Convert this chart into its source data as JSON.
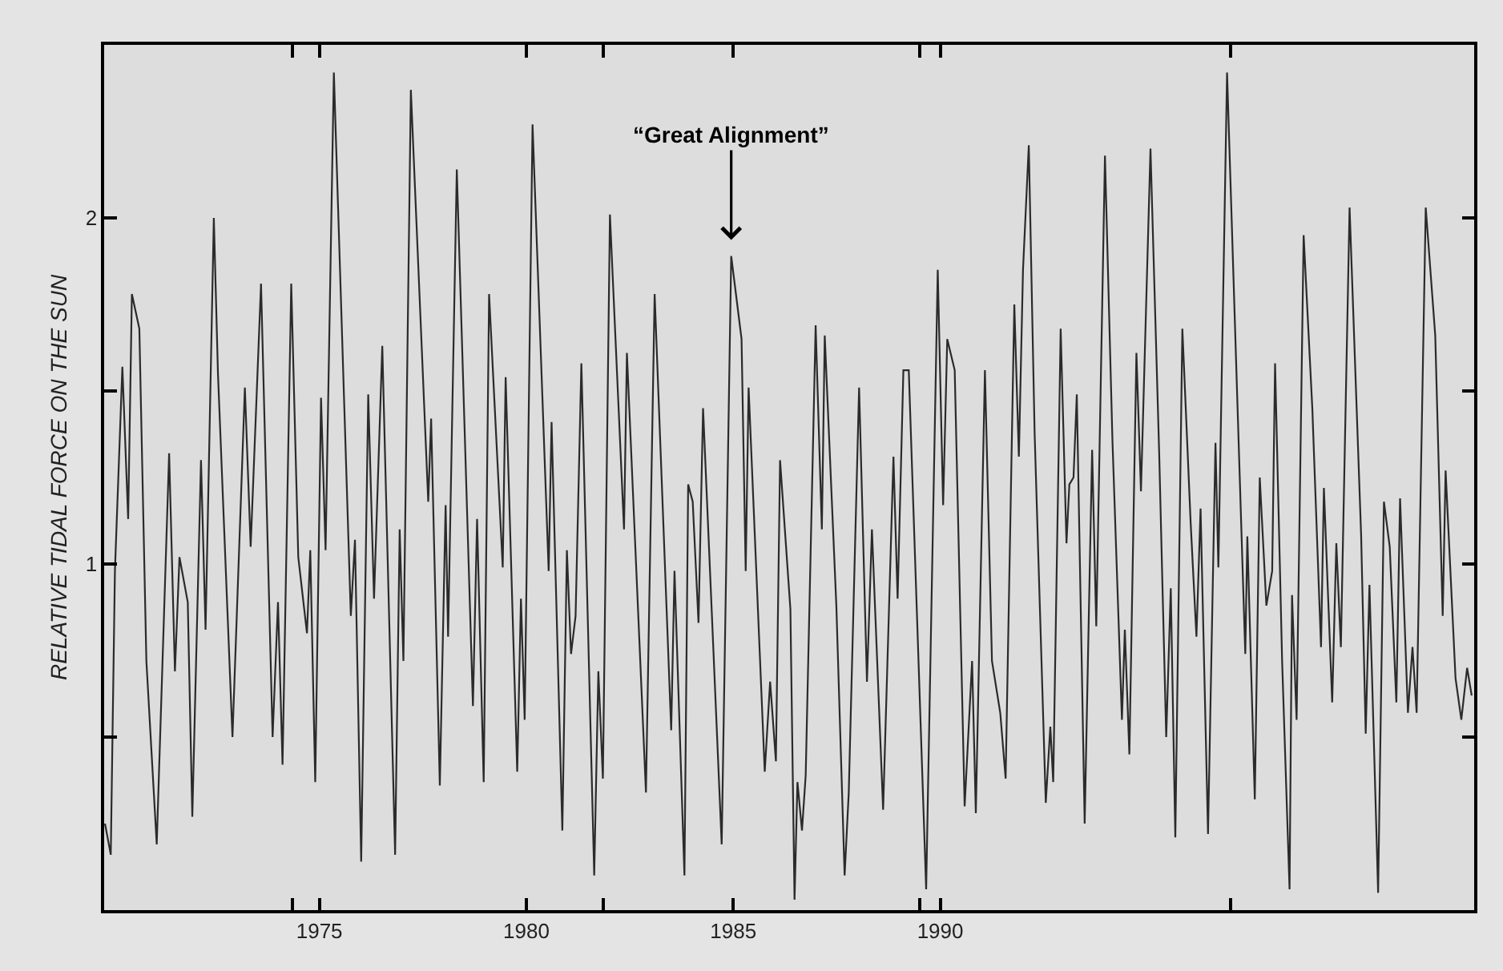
{
  "chart_data": {
    "type": "line",
    "ylabel": "RELATIVE TIDAL FORCE ON THE SUN",
    "annotations": [
      {
        "text": "“Great Alignment”",
        "x": 1984.95,
        "y": 1.89
      }
    ],
    "xlim": [
      1969.8,
      2002.9
    ],
    "xticks": [
      {
        "value": 1974.34,
        "label": null
      },
      1975,
      1980,
      {
        "value": 1981.86,
        "label": null
      },
      1985,
      {
        "value": 1989.5,
        "label": null
      },
      1990,
      {
        "value": 1997.02,
        "label": null
      }
    ],
    "ylim": [
      0,
      2.5
    ],
    "yticks": [
      {
        "value": 0.5,
        "label": null
      },
      1,
      {
        "value": 1.5,
        "label": null
      },
      2
    ],
    "marker": "none",
    "line_style": "solid",
    "series": [
      {
        "color": "#2b2b2b",
        "x": [
          1969.82,
          1969.96,
          1970.06,
          1970.24,
          1970.38,
          1970.47,
          1970.65,
          1970.82,
          1971.07,
          1971.37,
          1971.51,
          1971.62,
          1971.82,
          1971.93,
          1972.14,
          1972.25,
          1972.45,
          1972.55,
          1972.9,
          1973.2,
          1973.34,
          1973.59,
          1973.87,
          1974.0,
          1974.11,
          1974.32,
          1974.49,
          1974.7,
          1974.78,
          1974.9,
          1975.04,
          1975.15,
          1975.35,
          1975.76,
          1975.86,
          1976.01,
          1976.18,
          1976.32,
          1976.52,
          1976.83,
          1976.94,
          1977.03,
          1977.21,
          1977.63,
          1977.7,
          1977.91,
          1978.05,
          1978.11,
          1978.32,
          1978.71,
          1978.81,
          1978.97,
          1979.1,
          1979.43,
          1979.5,
          1979.78,
          1979.87,
          1979.96,
          1980.15,
          1980.54,
          1980.61,
          1980.87,
          1980.98,
          1981.08,
          1981.19,
          1981.33,
          1981.64,
          1981.74,
          1981.85,
          1982.02,
          1982.36,
          1982.43,
          1982.89,
          1983.1,
          1983.5,
          1983.58,
          1983.82,
          1983.91,
          1984.02,
          1984.16,
          1984.27,
          1984.72,
          1984.95,
          1985.2,
          1985.3,
          1985.37,
          1985.76,
          1985.89,
          1986.03,
          1986.13,
          1986.38,
          1986.48,
          1986.55,
          1986.66,
          1986.75,
          1986.99,
          1987.14,
          1987.21,
          1987.49,
          1987.69,
          1987.79,
          1988.04,
          1988.23,
          1988.35,
          1988.62,
          1988.87,
          1988.97,
          1989.11,
          1989.24,
          1989.66,
          1989.94,
          1990.07,
          1990.17,
          1990.35,
          1990.59,
          1990.77,
          1990.86,
          1991.08,
          1991.25,
          1991.45,
          1991.58,
          1991.79,
          1991.9,
          1992.0,
          1992.14,
          1992.28,
          1992.55,
          1992.66,
          1992.73,
          1992.91,
          1993.05,
          1993.12,
          1993.22,
          1993.3,
          1993.49,
          1993.67,
          1993.77,
          1993.98,
          1994.16,
          1994.39,
          1994.46,
          1994.57,
          1994.74,
          1994.85,
          1995.08,
          1995.29,
          1995.46,
          1995.57,
          1995.68,
          1995.85,
          1996.05,
          1996.19,
          1996.29,
          1996.47,
          1996.65,
          1996.72,
          1996.93,
          1997.37,
          1997.42,
          1997.6,
          1997.72,
          1997.88,
          1998.02,
          1998.09,
          1998.26,
          1998.44,
          1998.5,
          1998.61,
          1998.78,
          1998.99,
          1999.2,
          1999.27,
          1999.47,
          1999.57,
          1999.68,
          1999.89,
          2000.17,
          2000.28,
          2000.37,
          2000.58,
          2000.72,
          2000.86,
          2001.02,
          2001.11,
          2001.3,
          2001.41,
          2001.51,
          2001.73,
          2001.96,
          2002.14,
          2002.21,
          2002.45,
          2002.59,
          2002.73,
          2002.84
        ],
        "values": [
          0.25,
          0.16,
          0.98,
          1.57,
          1.13,
          1.78,
          1.68,
          0.72,
          0.19,
          1.32,
          0.69,
          1.02,
          0.89,
          0.27,
          1.3,
          0.81,
          2.0,
          1.55,
          0.5,
          1.51,
          1.05,
          1.81,
          0.5,
          0.89,
          0.42,
          1.81,
          1.02,
          0.8,
          1.04,
          0.37,
          1.48,
          1.04,
          2.42,
          0.85,
          1.07,
          0.14,
          1.49,
          0.9,
          1.63,
          0.16,
          1.1,
          0.72,
          2.37,
          1.18,
          1.42,
          0.36,
          1.17,
          0.79,
          2.14,
          0.59,
          1.13,
          0.37,
          1.78,
          0.99,
          1.54,
          0.4,
          0.9,
          0.55,
          2.27,
          0.98,
          1.41,
          0.23,
          1.04,
          0.74,
          0.85,
          1.58,
          0.1,
          0.69,
          0.38,
          2.01,
          1.1,
          1.61,
          0.34,
          1.78,
          0.52,
          0.98,
          0.1,
          1.23,
          1.18,
          0.83,
          1.45,
          0.19,
          1.89,
          1.65,
          0.98,
          1.51,
          0.4,
          0.66,
          0.43,
          1.3,
          0.87,
          0.03,
          0.37,
          0.23,
          0.39,
          1.69,
          1.1,
          1.66,
          0.88,
          0.1,
          0.34,
          1.51,
          0.66,
          1.1,
          0.29,
          1.31,
          0.9,
          1.56,
          1.56,
          0.06,
          1.85,
          1.17,
          1.65,
          1.56,
          0.3,
          0.72,
          0.28,
          1.56,
          0.72,
          0.57,
          0.38,
          1.75,
          1.31,
          1.85,
          2.21,
          1.38,
          0.31,
          0.53,
          0.37,
          1.68,
          1.06,
          1.23,
          1.25,
          1.49,
          0.25,
          1.33,
          0.82,
          2.18,
          1.36,
          0.55,
          0.81,
          0.45,
          1.61,
          1.21,
          2.2,
          1.32,
          0.5,
          0.93,
          0.21,
          1.68,
          1.12,
          0.79,
          1.16,
          0.22,
          1.35,
          0.99,
          2.42,
          0.74,
          1.08,
          0.32,
          1.25,
          0.88,
          0.98,
          1.58,
          0.72,
          0.06,
          0.91,
          0.55,
          1.95,
          1.45,
          0.76,
          1.22,
          0.6,
          1.06,
          0.76,
          2.03,
          1.08,
          0.51,
          0.94,
          0.05,
          1.18,
          1.05,
          0.6,
          1.19,
          0.57,
          0.76,
          0.57,
          2.03,
          1.66,
          0.85,
          1.27,
          0.67,
          0.55,
          0.7,
          0.62
        ]
      }
    ]
  }
}
